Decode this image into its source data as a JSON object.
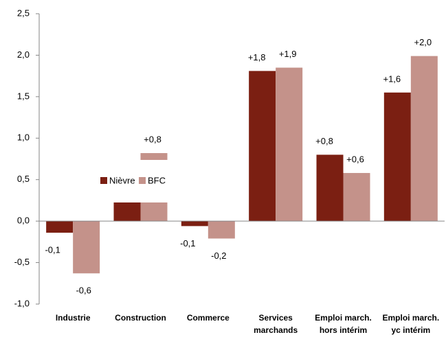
{
  "chart_data": {
    "type": "bar",
    "categories": [
      [
        "Industrie"
      ],
      [
        "Construction"
      ],
      [
        "Commerce"
      ],
      [
        "Services",
        "marchands"
      ],
      [
        "Emploi march.",
        "hors intérim"
      ],
      [
        "Emploi march.",
        "yc intérim"
      ]
    ],
    "series": [
      {
        "name": "Nièvre",
        "color": "#7b1f12",
        "values": [
          -0.14,
          0.23,
          -0.06,
          1.81,
          0.8,
          1.55
        ],
        "value_labels": [
          "-0,1",
          null,
          "-0,1",
          "+1,8",
          "+0,8",
          "+1,6"
        ]
      },
      {
        "name": "BFC",
        "color": "#c4928a",
        "values": [
          -0.63,
          0.82,
          -0.21,
          1.85,
          0.58,
          1.99
        ],
        "value_labels": [
          "-0,6",
          "+0,8",
          "-0,2",
          "+1,9",
          "+0,6",
          "+2,0"
        ]
      }
    ],
    "ylim": [
      -1.0,
      2.5
    ],
    "yticks": [
      {
        "value": -1.0,
        "label": "-1,0"
      },
      {
        "value": -0.5,
        "label": "-0,5"
      },
      {
        "value": 0.0,
        "label": "0,0"
      },
      {
        "value": 0.5,
        "label": "0,5"
      },
      {
        "value": 1.0,
        "label": "1,0"
      },
      {
        "value": 1.5,
        "label": "1,5"
      },
      {
        "value": 2.0,
        "label": "2,0"
      },
      {
        "value": 2.5,
        "label": "2,5"
      }
    ],
    "grid": false
  }
}
